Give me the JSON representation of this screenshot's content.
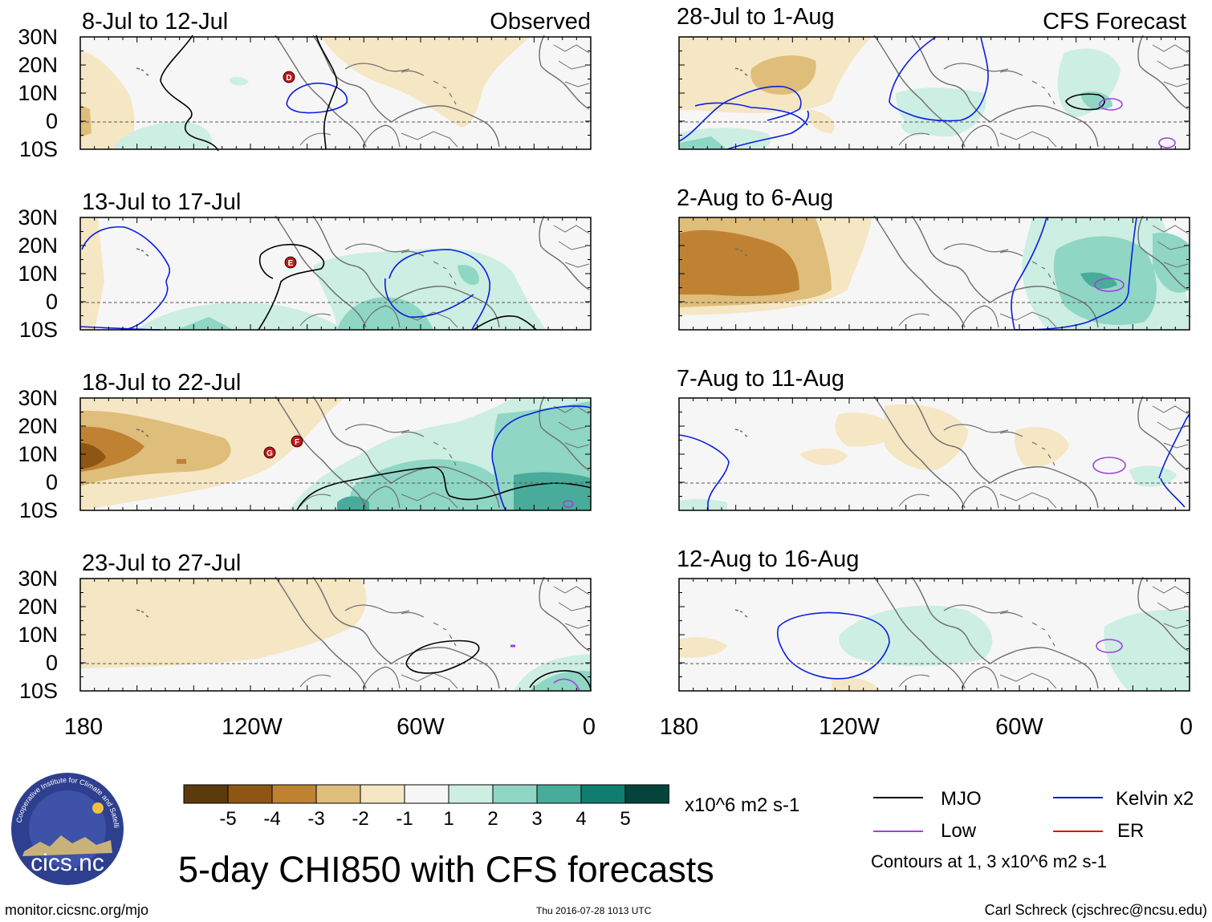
{
  "header": {
    "observed": "Observed",
    "forecast": "CFS Forecast"
  },
  "panels_observed": [
    {
      "id": "obs1",
      "label": "8-Jul to 12-Jul",
      "markers": [
        "D"
      ]
    },
    {
      "id": "obs2",
      "label": "13-Jul to 17-Jul",
      "markers": [
        "E"
      ]
    },
    {
      "id": "obs3",
      "label": "18-Jul to 22-Jul",
      "markers": [
        "F",
        "G"
      ]
    },
    {
      "id": "obs4",
      "label": "23-Jul to 27-Jul",
      "markers": []
    }
  ],
  "panels_forecast": [
    {
      "id": "fc1",
      "label": "28-Jul to 1-Aug"
    },
    {
      "id": "fc2",
      "label": "2-Aug to 6-Aug"
    },
    {
      "id": "fc3",
      "label": "7-Aug to 11-Aug"
    },
    {
      "id": "fc4",
      "label": "12-Aug to 16-Aug"
    }
  ],
  "lat_labels": [
    "30N",
    "20N",
    "10N",
    "0",
    "10S"
  ],
  "lon_labels": [
    "180",
    "120W",
    "60W",
    "0"
  ],
  "colorbar": {
    "colors": [
      "#5c3a0c",
      "#8e5614",
      "#bf8232",
      "#dfbd7a",
      "#f5e6c4",
      "#f6f6f6",
      "#cdeee2",
      "#8fd6c4",
      "#49ab99",
      "#117c70",
      "#04443a"
    ],
    "labels": [
      "-5",
      "-4",
      "-3",
      "-2",
      "-1",
      "1",
      "2",
      "3",
      "4",
      "5"
    ],
    "units": "x10^6 m2 s-1"
  },
  "title": "5-day CHI850 with CFS forecasts",
  "legend": {
    "items": [
      {
        "label": "MJO",
        "color": "#000000"
      },
      {
        "label": "Kelvin x2",
        "color": "#0a1ee0"
      },
      {
        "label": "Low",
        "color": "#a040e0"
      },
      {
        "label": "ER",
        "color": "#e01010"
      }
    ],
    "note": "Contours at 1, 3 x10^6 m2 s-1"
  },
  "logo": {
    "text": "cics.nc",
    "ring_text": "Cooperative Institute for Climate and Satellites"
  },
  "footer": {
    "left": "monitor.cicsnc.org/mjo",
    "center": "Thu 2016-07-28 1013 UTC",
    "right": "Carl Schreck (cjschrec@ncsu.edu)"
  }
}
